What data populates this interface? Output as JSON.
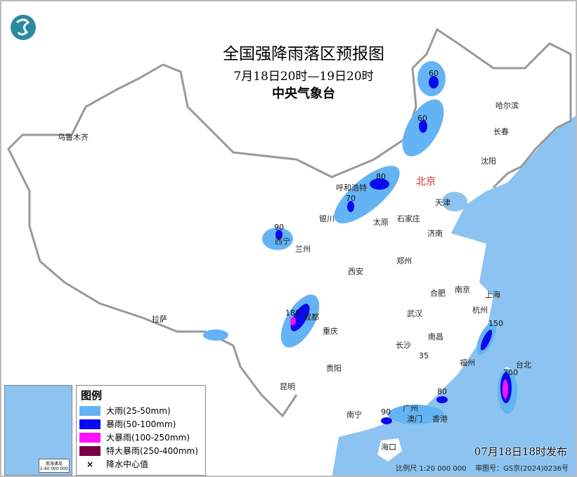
{
  "header": {
    "title": "全国强降雨落区预报图",
    "period": "7月18日20时—19日20时",
    "agency": "中央气象台"
  },
  "colors": {
    "heavy_rain": "#64b4f5",
    "rainstorm": "#0a0af0",
    "heavy_rainstorm": "#ff10ff",
    "extreme_rainstorm": "#780046",
    "sea": "#8cc3f0",
    "border": "#999999",
    "logo": "#2a8aa0"
  },
  "logo": {
    "icon": "cma-logo"
  },
  "legend": {
    "title": "图例",
    "items": [
      {
        "label": "大雨(25-50mm)",
        "color": "#64b4f5"
      },
      {
        "label": "暴雨(50-100mm)",
        "color": "#0a0af0"
      },
      {
        "label": "大暴雨(100-250mm)",
        "color": "#ff10ff"
      },
      {
        "label": "特大暴雨(250-400mm)",
        "color": "#780046"
      },
      {
        "label": "降水中心值",
        "symbol": "×"
      }
    ]
  },
  "inset": {
    "label": "南海诸岛",
    "scale": "1:40 000 000"
  },
  "cities": [
    "乌鲁木齐",
    "哈尔滨",
    "长春",
    "沈阳",
    "北京",
    "天津",
    "呼和浩特",
    "石家庄",
    "太原",
    "济南",
    "银川",
    "西宁",
    "兰州",
    "郑州",
    "西安",
    "合肥",
    "南京",
    "上海",
    "杭州",
    "武汉",
    "成都",
    "重庆",
    "拉萨",
    "南昌",
    "长沙",
    "福州",
    "台北",
    "贵阳",
    "昆明",
    "广州",
    "澳门",
    "香港",
    "南宁",
    "海口"
  ],
  "rain_centers": [
    "60",
    "60",
    "80",
    "70",
    "90",
    "180",
    "150",
    "35",
    "80",
    "90",
    "300"
  ],
  "footer": {
    "issued": "07月18日18时发布",
    "scale": "比例尺 1:20 000 000",
    "review_no": "审图号：GS京(2024)0236号"
  }
}
